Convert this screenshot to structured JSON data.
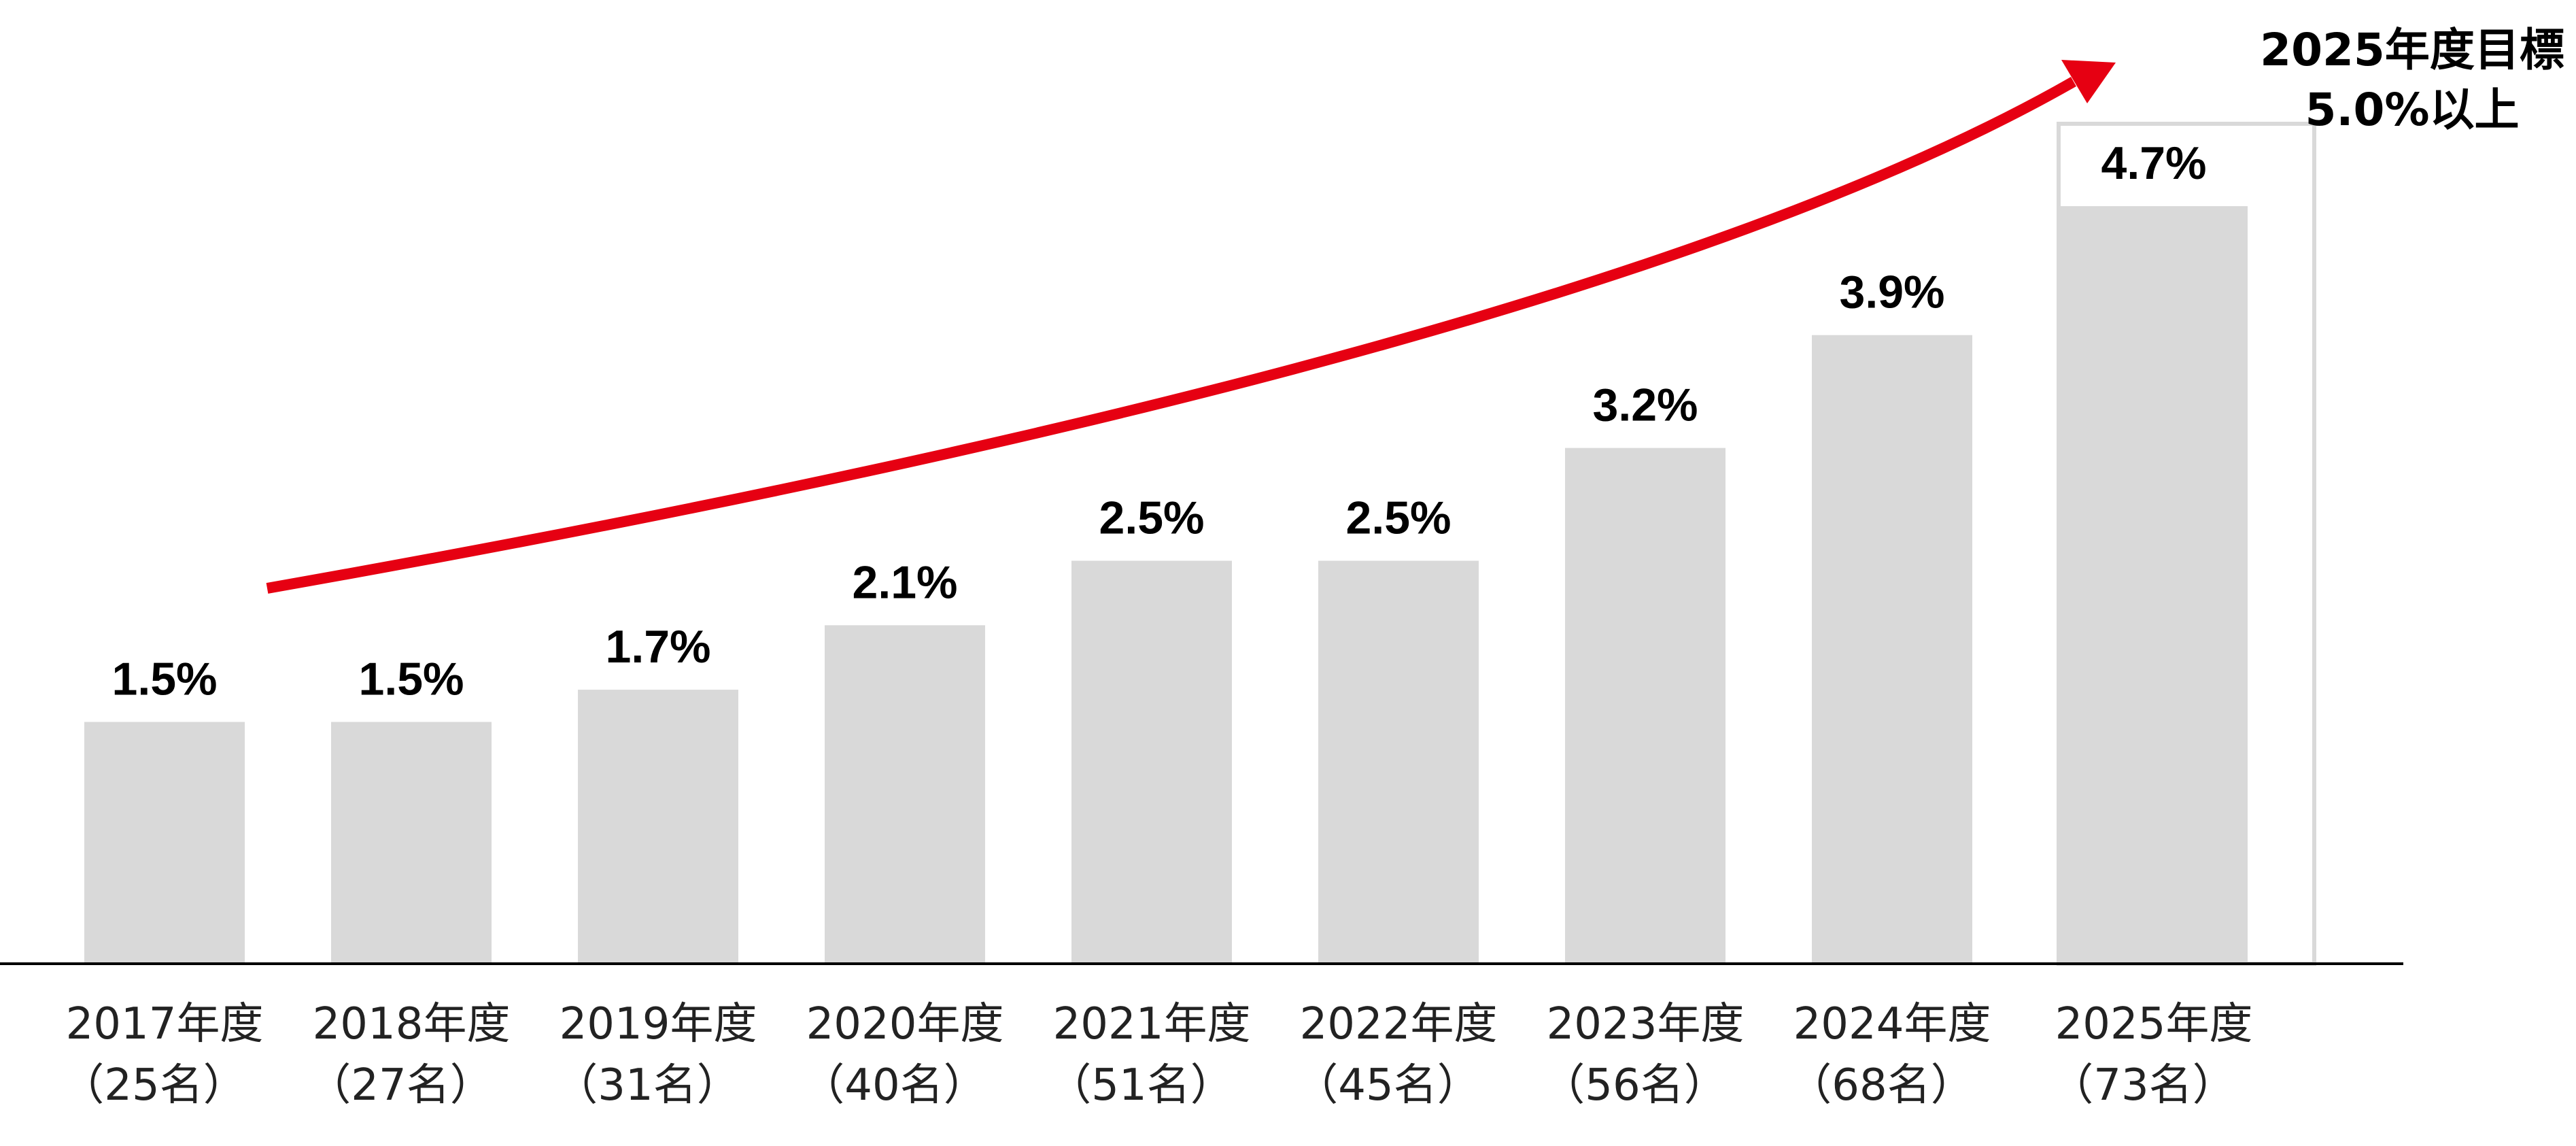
{
  "chart_data": {
    "type": "bar",
    "categories": [
      "2017年度",
      "2018年度",
      "2019年度",
      "2020年度",
      "2021年度",
      "2022年度",
      "2023年度",
      "2024年度",
      "2025年度"
    ],
    "sub_labels": [
      "（25名）",
      "（27名）",
      "（31名）",
      "（40名）",
      "（51名）",
      "（45名）",
      "（56名）",
      "（68名）",
      "（73名）"
    ],
    "values": [
      1.5,
      1.5,
      1.7,
      2.1,
      2.5,
      2.5,
      3.2,
      3.9,
      4.7
    ],
    "value_labels": [
      "1.5%",
      "1.5%",
      "1.7%",
      "2.1%",
      "2.5%",
      "2.5%",
      "3.2%",
      "3.9%",
      "4.7%"
    ],
    "ylim": [
      0,
      5.0
    ],
    "target": {
      "category": "2025年度",
      "value": 5.0,
      "label_lines": [
        "2025年度目標",
        "5.0%以上"
      ]
    },
    "trend_arrow": true,
    "grid": false,
    "colors": {
      "bar": "#d9d9d9",
      "arrow": "#e60012",
      "axis": "#000000"
    }
  }
}
